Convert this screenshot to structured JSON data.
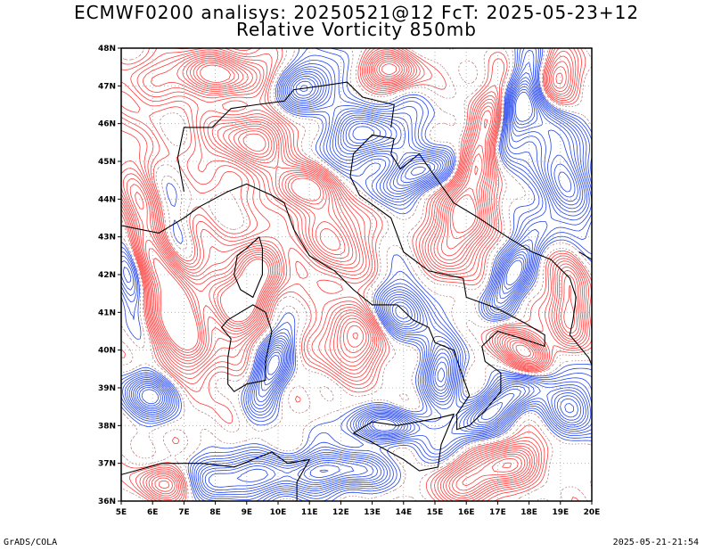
{
  "title": {
    "line1": "ECMWF0200 analisys: 20250521@12 FcT: 2025-05-23+12",
    "line2": "Relative Vorticity 850mb"
  },
  "map": {
    "lon_range": [
      5,
      20
    ],
    "lat_range": [
      36,
      48
    ],
    "lon_ticks": [
      "5E",
      "6E",
      "7E",
      "8E",
      "9E",
      "10E",
      "11E",
      "12E",
      "13E",
      "14E",
      "15E",
      "16E",
      "17E",
      "18E",
      "19E",
      "20E"
    ],
    "lat_ticks": [
      "36N",
      "37N",
      "38N",
      "39N",
      "40N",
      "41N",
      "42N",
      "43N",
      "44N",
      "45N",
      "46N",
      "47N",
      "48N"
    ],
    "colors": {
      "positive": "#ff3b3b",
      "positive_dense": "#ff5050",
      "negative": "#2244ee",
      "negative_dense": "#3355ff",
      "neutral_dotted": "#b07070",
      "coastline": "#000000",
      "grid_dots": "#aaaaaa"
    },
    "legend": "none",
    "grid": "dotted"
  },
  "footer": {
    "left": "GrADS/COLA",
    "right": "2025-05-21-21:54"
  }
}
